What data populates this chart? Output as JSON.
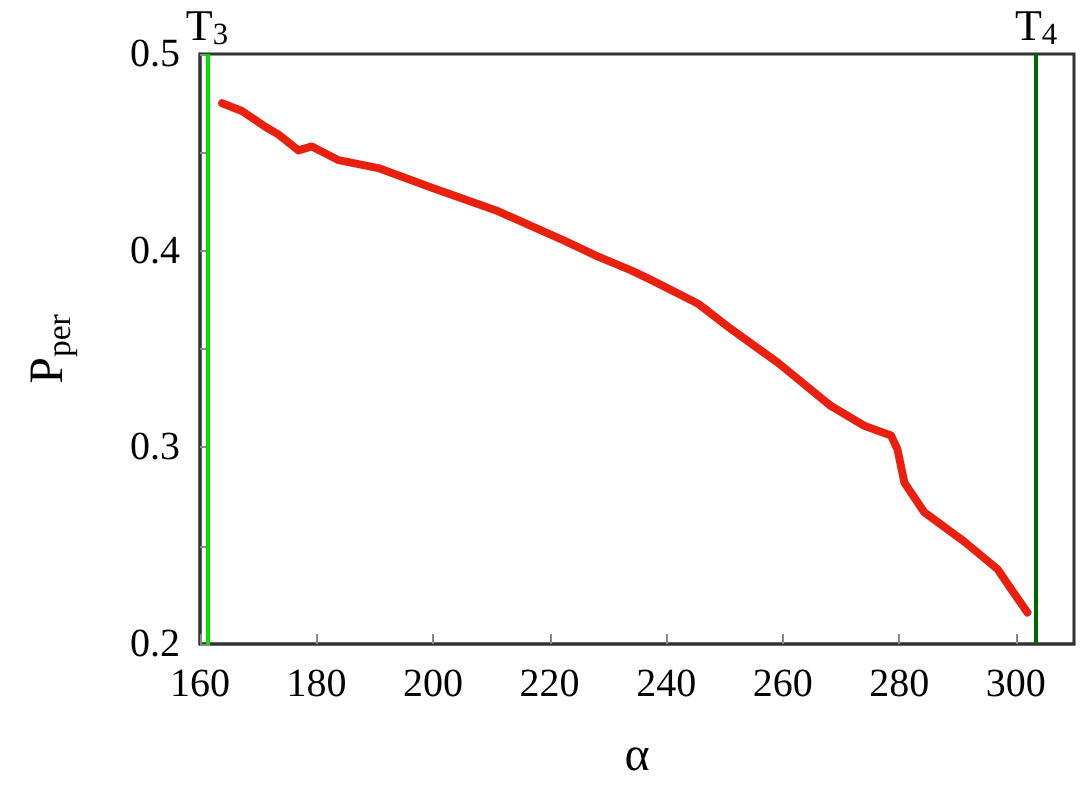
{
  "chart_data": {
    "type": "line",
    "xlabel": "α",
    "ylabel": "P$_{per}$",
    "x": [
      163.8,
      167.2,
      171.2,
      173.5,
      176.9,
      179.2,
      183.8,
      190.6,
      199.8,
      211.2,
      222.6,
      228.3,
      234,
      237.5,
      245.5,
      251.2,
      259.2,
      268.3,
      274,
      278.6,
      279.7,
      280.9,
      284.3,
      291.2,
      296.9,
      299.2,
      302
    ],
    "series": [
      {
        "color": "#e8200f",
        "values": [
          0.475,
          0.471,
          0.463,
          0.459,
          0.451,
          0.453,
          0.446,
          0.442,
          0.432,
          0.42,
          0.405,
          0.397,
          0.39,
          0.385,
          0.373,
          0.36,
          0.343,
          0.321,
          0.311,
          0.306,
          0.299,
          0.282,
          0.267,
          0.252,
          0.238,
          0.228,
          0.216
        ]
      }
    ],
    "xlim": [
      160,
      310
    ],
    "xticks": [
      160,
      180,
      200,
      220,
      240,
      260,
      280,
      300
    ],
    "ylim": [
      0.2,
      0.5
    ],
    "yticks": [
      0.2,
      {
        "value": 0.25,
        "label": null
      },
      0.3,
      {
        "value": 0.35,
        "label": null
      },
      0.4,
      {
        "value": 0.45,
        "label": null
      },
      0.5
    ],
    "ref_lines": [
      {
        "axis": "x",
        "value": 161.2,
        "label": "T$_{3}$",
        "color": "#00dd00"
      },
      {
        "axis": "x",
        "value": 303.5,
        "label": "T$_{4}$",
        "color": "#006400"
      }
    ],
    "grid": false,
    "marker": "none",
    "line_style": "solid"
  }
}
